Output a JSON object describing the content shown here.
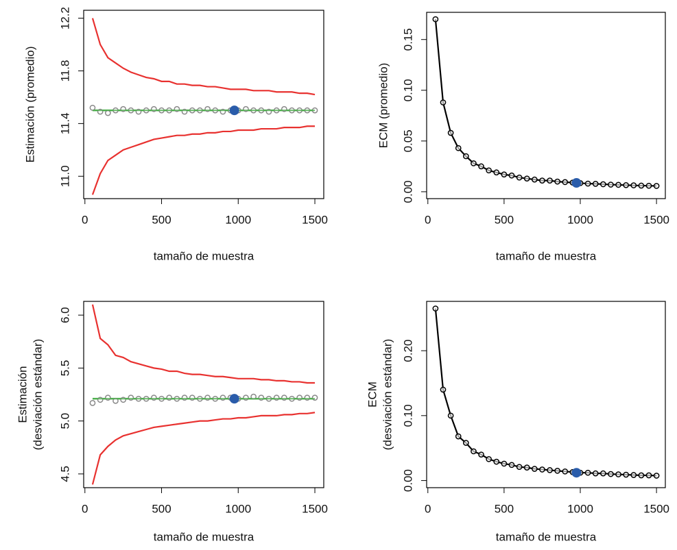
{
  "chart_data": [
    {
      "type": "line",
      "xlabel": "tamaño de muestra",
      "ylabel": [
        "Estimación (promedio)"
      ],
      "x": [
        50,
        100,
        150,
        200,
        250,
        300,
        350,
        400,
        450,
        500,
        550,
        600,
        650,
        700,
        750,
        800,
        850,
        900,
        950,
        1000,
        1050,
        1100,
        1150,
        1200,
        1250,
        1300,
        1350,
        1400,
        1450,
        1500
      ],
      "xlim": [
        -8,
        1558
      ],
      "xticks": [
        0,
        500,
        1000,
        1500
      ],
      "ylim": [
        10.83,
        12.26
      ],
      "yticks": [
        {
          "value": 11,
          "label": "11.0"
        },
        11.4,
        11.8,
        12.2
      ],
      "hline": {
        "value": 11.5,
        "color": "#4cb04c"
      },
      "series": [
        {
          "color": "#e8312f",
          "line": true,
          "marker": false,
          "values": [
            12.2,
            12.0,
            11.9,
            11.86,
            11.82,
            11.79,
            11.77,
            11.75,
            11.74,
            11.72,
            11.72,
            11.7,
            11.7,
            11.69,
            11.69,
            11.68,
            11.68,
            11.67,
            11.66,
            11.66,
            11.66,
            11.65,
            11.65,
            11.65,
            11.64,
            11.64,
            11.64,
            11.63,
            11.63,
            11.62
          ]
        },
        {
          "color": "#e8312f",
          "line": true,
          "marker": false,
          "values": [
            10.86,
            11.02,
            11.12,
            11.16,
            11.2,
            11.22,
            11.24,
            11.26,
            11.28,
            11.29,
            11.3,
            11.31,
            11.31,
            11.32,
            11.32,
            11.33,
            11.33,
            11.34,
            11.34,
            11.35,
            11.35,
            11.35,
            11.36,
            11.36,
            11.36,
            11.37,
            11.37,
            11.37,
            11.38,
            11.38
          ]
        },
        {
          "color": "#888888",
          "line": false,
          "marker": true,
          "values": [
            11.52,
            11.49,
            11.48,
            11.5,
            11.51,
            11.5,
            11.49,
            11.5,
            11.51,
            11.5,
            11.5,
            11.51,
            11.49,
            11.5,
            11.5,
            11.51,
            11.5,
            11.49,
            11.5,
            11.5,
            11.51,
            11.5,
            11.5,
            11.49,
            11.5,
            11.51,
            11.5,
            11.5,
            11.5,
            11.5
          ]
        }
      ],
      "highlight": {
        "x": 975,
        "y": 11.5,
        "color": "#2a5caa"
      }
    },
    {
      "type": "line",
      "xlabel": "tamaño de muestra",
      "ylabel": [
        "ECM (promedio)"
      ],
      "x": [
        50,
        100,
        150,
        200,
        250,
        300,
        350,
        400,
        450,
        500,
        550,
        600,
        650,
        700,
        750,
        800,
        850,
        900,
        950,
        1000,
        1050,
        1100,
        1150,
        1200,
        1250,
        1300,
        1350,
        1400,
        1450,
        1500
      ],
      "xlim": [
        -8,
        1558
      ],
      "xticks": [
        0,
        500,
        1000,
        1500
      ],
      "ylim": [
        -0.0068,
        0.1768
      ],
      "yticks": [
        {
          "value": 0,
          "label": "0.00"
        },
        0.05,
        {
          "value": 0.1,
          "label": "0.10"
        },
        0.15
      ],
      "series": [
        {
          "color": "#000000",
          "line": true,
          "marker": true,
          "values": [
            0.17,
            0.088,
            0.058,
            0.043,
            0.035,
            0.028,
            0.025,
            0.021,
            0.019,
            0.017,
            0.016,
            0.014,
            0.013,
            0.012,
            0.011,
            0.011,
            0.01,
            0.0095,
            0.009,
            0.0085,
            0.008,
            0.0078,
            0.0074,
            0.007,
            0.0068,
            0.0065,
            0.0063,
            0.006,
            0.0059,
            0.0057
          ]
        }
      ],
      "highlight": {
        "x": 975,
        "y": 0.0087,
        "color": "#2a5caa"
      }
    },
    {
      "type": "line",
      "xlabel": "tamaño de muestra",
      "ylabel": [
        "Estimación",
        "(desviación estándar)"
      ],
      "x": [
        50,
        100,
        150,
        200,
        250,
        300,
        350,
        400,
        450,
        500,
        550,
        600,
        650,
        700,
        750,
        800,
        850,
        900,
        950,
        1000,
        1050,
        1100,
        1150,
        1200,
        1250,
        1300,
        1350,
        1400,
        1450,
        1500
      ],
      "xlim": [
        -8,
        1558
      ],
      "xticks": [
        0,
        500,
        1000,
        1500
      ],
      "ylim": [
        4.37,
        6.13
      ],
      "yticks": [
        4.5,
        {
          "value": 5,
          "label": "5.0"
        },
        5.5,
        {
          "value": 6,
          "label": "6.0"
        }
      ],
      "hline": {
        "value": 5.21,
        "color": "#4cb04c"
      },
      "series": [
        {
          "color": "#e8312f",
          "line": true,
          "marker": false,
          "values": [
            6.1,
            5.78,
            5.72,
            5.62,
            5.6,
            5.56,
            5.54,
            5.52,
            5.5,
            5.49,
            5.47,
            5.47,
            5.45,
            5.44,
            5.44,
            5.43,
            5.42,
            5.42,
            5.41,
            5.4,
            5.4,
            5.4,
            5.39,
            5.39,
            5.38,
            5.38,
            5.37,
            5.37,
            5.36,
            5.36
          ]
        },
        {
          "color": "#e8312f",
          "line": true,
          "marker": false,
          "values": [
            4.4,
            4.68,
            4.76,
            4.82,
            4.86,
            4.88,
            4.9,
            4.92,
            4.94,
            4.95,
            4.96,
            4.97,
            4.98,
            4.99,
            5.0,
            5.0,
            5.01,
            5.02,
            5.02,
            5.03,
            5.03,
            5.04,
            5.05,
            5.05,
            5.05,
            5.06,
            5.06,
            5.07,
            5.07,
            5.08
          ]
        },
        {
          "color": "#888888",
          "line": false,
          "marker": true,
          "values": [
            5.17,
            5.2,
            5.22,
            5.19,
            5.2,
            5.22,
            5.21,
            5.21,
            5.22,
            5.21,
            5.22,
            5.21,
            5.22,
            5.22,
            5.21,
            5.22,
            5.21,
            5.22,
            5.22,
            5.21,
            5.22,
            5.23,
            5.22,
            5.21,
            5.22,
            5.22,
            5.21,
            5.22,
            5.22,
            5.22
          ]
        }
      ],
      "highlight": {
        "x": 975,
        "y": 5.21,
        "color": "#2a5caa"
      }
    },
    {
      "type": "line",
      "xlabel": "tamaño de muestra",
      "ylabel": [
        "ECM",
        "(desviación estándar)"
      ],
      "x": [
        50,
        100,
        150,
        200,
        250,
        300,
        350,
        400,
        450,
        500,
        550,
        600,
        650,
        700,
        750,
        800,
        850,
        900,
        950,
        1000,
        1050,
        1100,
        1150,
        1200,
        1250,
        1300,
        1350,
        1400,
        1450,
        1500
      ],
      "xlim": [
        -8,
        1558
      ],
      "xticks": [
        0,
        500,
        1000,
        1500
      ],
      "ylim": [
        -0.011,
        0.276
      ],
      "yticks": [
        {
          "value": 0,
          "label": "0.00"
        },
        {
          "value": 0.1,
          "label": "0.10"
        },
        {
          "value": 0.2,
          "label": "0.20"
        }
      ],
      "series": [
        {
          "color": "#000000",
          "line": true,
          "marker": true,
          "values": [
            0.265,
            0.14,
            0.1,
            0.068,
            0.058,
            0.045,
            0.04,
            0.033,
            0.029,
            0.026,
            0.024,
            0.021,
            0.02,
            0.018,
            0.017,
            0.016,
            0.015,
            0.014,
            0.013,
            0.012,
            0.012,
            0.011,
            0.011,
            0.01,
            0.0095,
            0.009,
            0.0085,
            0.008,
            0.008,
            0.0075
          ]
        }
      ],
      "highlight": {
        "x": 975,
        "y": 0.012,
        "color": "#2a5caa"
      }
    }
  ]
}
